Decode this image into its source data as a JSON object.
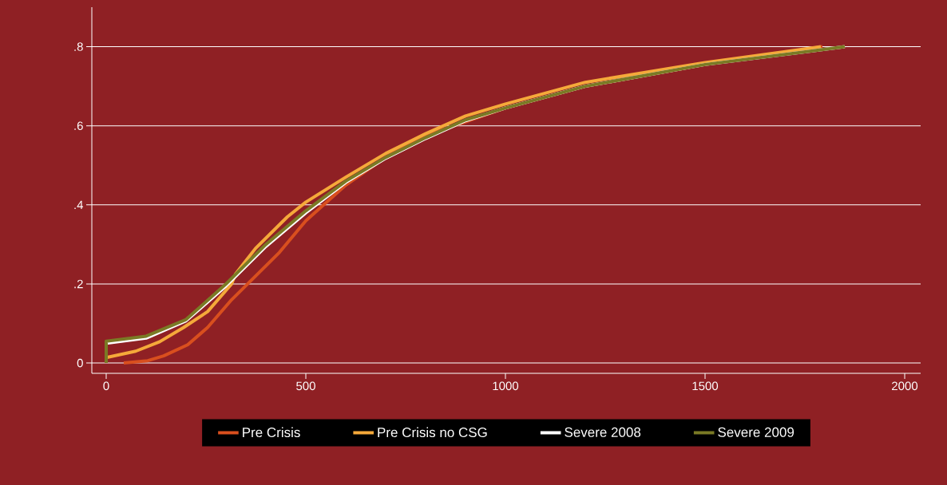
{
  "chart_data": {
    "type": "line",
    "xlim": [
      -36,
      2040
    ],
    "ylim": [
      -0.026,
      0.9
    ],
    "xticks": [
      0,
      500,
      1000,
      1500,
      2000
    ],
    "yticks": [
      {
        "value": 0,
        "label": "0"
      },
      {
        "value": 0.2,
        "label": ".2"
      },
      {
        "value": 0.4,
        "label": ".4"
      },
      {
        "value": 0.6,
        "label": ".6"
      },
      {
        "value": 0.8,
        "label": ".8"
      }
    ],
    "grid": "y",
    "legend": "bottom",
    "line_style": "solid",
    "marker": "none",
    "series": [
      {
        "name": "Pre Crisis",
        "color": "#d94f1e",
        "x": [
          44,
          104,
          144,
          204,
          254,
          314,
          374,
          434,
          500,
          600,
          700,
          800,
          1000,
          1200,
          1500,
          1794
        ],
        "values": [
          0,
          0.006,
          0.018,
          0.046,
          0.09,
          0.16,
          0.22,
          0.28,
          0.36,
          0.45,
          0.52,
          0.575,
          0.645,
          0.7,
          0.755,
          0.8
        ]
      },
      {
        "name": "Pre Crisis no CSG",
        "color": "#f5a93a",
        "x": [
          0,
          74,
          134,
          194,
          254,
          314,
          324,
          374,
          454,
          500,
          600,
          700,
          800,
          900,
          1000,
          1200,
          1500,
          1790
        ],
        "values": [
          0.014,
          0.03,
          0.054,
          0.09,
          0.13,
          0.2,
          0.225,
          0.29,
          0.37,
          0.407,
          0.47,
          0.53,
          0.58,
          0.625,
          0.655,
          0.71,
          0.76,
          0.8
        ]
      },
      {
        "name": "Severe 2008",
        "color": "#ffffff",
        "x": [
          0,
          0,
          100,
          200,
          300,
          400,
          500,
          600,
          700,
          800,
          900,
          1000,
          1200,
          1500,
          1850
        ],
        "values": [
          0,
          0.05,
          0.063,
          0.107,
          0.195,
          0.295,
          0.38,
          0.457,
          0.518,
          0.568,
          0.613,
          0.645,
          0.7,
          0.755,
          0.8
        ]
      },
      {
        "name": "Severe 2009",
        "color": "#7a7a25",
        "x": [
          0,
          0,
          100,
          200,
          300,
          400,
          500,
          600,
          700,
          800,
          900,
          1000,
          1200,
          1500,
          1850
        ],
        "values": [
          0,
          0.055,
          0.068,
          0.11,
          0.2,
          0.3,
          0.385,
          0.46,
          0.52,
          0.57,
          0.615,
          0.645,
          0.7,
          0.755,
          0.8
        ]
      }
    ]
  }
}
